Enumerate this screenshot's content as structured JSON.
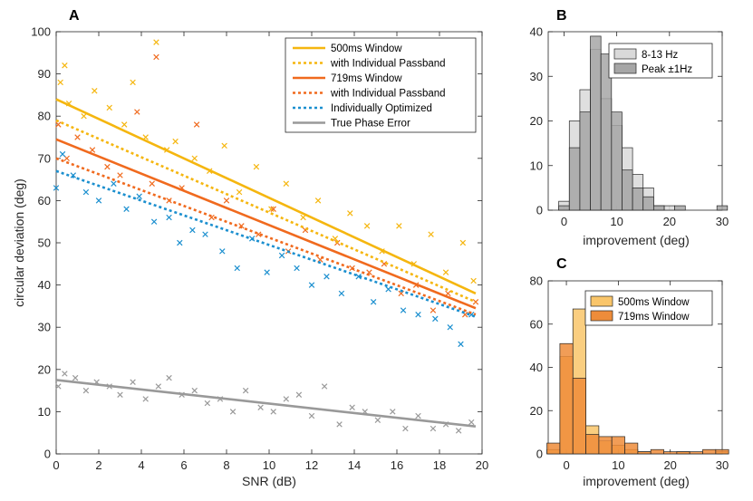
{
  "colors": {
    "w500": "#f5b60f",
    "w719": "#f06a1e",
    "optimized": "#1b8fcf",
    "truephase": "#999999",
    "hist_light": "#d9d9d9",
    "hist_dark": "#a6a6a6",
    "hist_500": "#f9c56a",
    "hist_719": "#ee8c3a"
  },
  "chart_data": [
    {
      "panel": "A",
      "type": "scatter",
      "title": "",
      "xlabel": "SNR (dB)",
      "ylabel": "circular deviation (deg)",
      "xlim": [
        0,
        20
      ],
      "ylim": [
        0,
        100
      ],
      "xticks": [
        0,
        2,
        4,
        6,
        8,
        10,
        12,
        14,
        16,
        18,
        20
      ],
      "yticks": [
        0,
        10,
        20,
        30,
        40,
        50,
        60,
        70,
        80,
        90,
        100
      ],
      "legend_position": "top-right",
      "series": [
        {
          "name": "500ms Window",
          "kind": "line",
          "color_key": "w500",
          "dash": "solid",
          "x": [
            0,
            19.7
          ],
          "y": [
            84,
            38
          ]
        },
        {
          "name": "with Individual Passband",
          "kind": "line",
          "color_key": "w500",
          "dash": "dotted",
          "x": [
            0,
            19.7
          ],
          "y": [
            79,
            36
          ]
        },
        {
          "name": "719ms Window",
          "kind": "line",
          "color_key": "w719",
          "dash": "solid",
          "x": [
            0,
            19.7
          ],
          "y": [
            74.5,
            34.5
          ]
        },
        {
          "name": "with Individual Passband",
          "kind": "line",
          "color_key": "w719",
          "dash": "dotted",
          "x": [
            0,
            19.7
          ],
          "y": [
            70,
            33
          ]
        },
        {
          "name": "Individually Optimized",
          "kind": "line",
          "color_key": "optimized",
          "dash": "dotted",
          "x": [
            0,
            19.7
          ],
          "y": [
            67,
            32.5
          ]
        },
        {
          "name": "True Phase Error",
          "kind": "line",
          "color_key": "truephase",
          "dash": "solid",
          "x": [
            0,
            19.7
          ],
          "y": [
            17.5,
            6.5
          ]
        },
        {
          "name": "500ms Window points",
          "kind": "scatter",
          "color_key": "w500",
          "x": [
            0.2,
            0.4,
            0.6,
            1.3,
            1.8,
            2.5,
            3.2,
            3.6,
            4.2,
            4.7,
            5.2,
            5.6,
            6.5,
            7.2,
            7.9,
            8.6,
            9.4,
            10.1,
            10.8,
            11.6,
            12.3,
            13.1,
            13.8,
            14.6,
            15.3,
            16.1,
            16.8,
            17.6,
            18.3,
            19.1,
            19.6
          ],
          "y": [
            88,
            92,
            83,
            80,
            86,
            82,
            78,
            88,
            75,
            97.5,
            72,
            74,
            70,
            67,
            73,
            62,
            68,
            58,
            64,
            56,
            60,
            51,
            57,
            54,
            48,
            54,
            45,
            52,
            43,
            50,
            41
          ]
        },
        {
          "name": "719ms Window points",
          "kind": "scatter",
          "color_key": "w719",
          "x": [
            0.1,
            0.5,
            1.0,
            1.7,
            2.4,
            3.0,
            3.8,
            4.5,
            4.7,
            5.3,
            5.9,
            6.6,
            7.3,
            8.0,
            8.7,
            9.5,
            10.2,
            10.9,
            11.7,
            12.4,
            13.2,
            13.9,
            14.7,
            15.4,
            16.2,
            16.9,
            17.7,
            18.4,
            19.2,
            19.7
          ],
          "y": [
            78,
            70,
            75,
            72,
            68,
            66,
            81,
            64,
            94,
            60,
            63,
            78,
            56,
            60,
            54,
            52,
            58,
            48,
            53,
            46,
            50,
            44,
            43,
            45,
            38,
            40,
            34,
            38,
            33,
            36
          ]
        },
        {
          "name": "Individually Optimized points",
          "kind": "scatter",
          "color_key": "optimized",
          "x": [
            0.0,
            0.3,
            0.8,
            1.4,
            2.0,
            2.7,
            3.3,
            3.9,
            4.6,
            5.3,
            5.8,
            6.4,
            7.0,
            7.8,
            8.5,
            9.2,
            9.9,
            10.6,
            11.3,
            12.0,
            12.7,
            13.4,
            14.2,
            14.9,
            15.6,
            16.3,
            17.0,
            17.8,
            18.5,
            19.0,
            19.5
          ],
          "y": [
            63,
            71,
            66,
            62,
            60,
            64,
            58,
            61,
            55,
            56,
            50,
            53,
            52,
            48,
            44,
            51,
            43,
            47,
            44,
            40,
            42,
            38,
            42,
            36,
            39,
            34,
            33,
            32,
            30,
            26,
            33
          ]
        },
        {
          "name": "True Phase Error points",
          "kind": "scatter",
          "color_key": "truephase",
          "x": [
            0.1,
            0.4,
            0.9,
            1.4,
            1.9,
            2.5,
            3.0,
            3.6,
            4.2,
            4.8,
            5.3,
            5.9,
            6.5,
            7.1,
            7.7,
            8.3,
            8.9,
            9.6,
            10.2,
            10.8,
            11.4,
            12.0,
            12.6,
            13.3,
            13.9,
            14.5,
            15.1,
            15.8,
            16.4,
            17.0,
            17.7,
            18.3,
            18.9,
            19.5
          ],
          "y": [
            16,
            19,
            18,
            15,
            17,
            16,
            14,
            17,
            13,
            16,
            18,
            14,
            15,
            12,
            13,
            10,
            15,
            11,
            10,
            13,
            14,
            9,
            16,
            7,
            11,
            10,
            8,
            10,
            6,
            9,
            6,
            7,
            5.5,
            7.5
          ]
        }
      ]
    },
    {
      "panel": "B",
      "type": "bar",
      "xlabel": "improvement (deg)",
      "ylabel": "",
      "xlim": [
        -3,
        30
      ],
      "ylim": [
        0,
        40
      ],
      "xticks": [
        0,
        10,
        20,
        30
      ],
      "yticks": [
        0,
        10,
        20,
        30,
        40
      ],
      "bin_width": 2,
      "legend_position": "top-right",
      "series": [
        {
          "name": "8-13 Hz",
          "color_key": "hist_light",
          "bin_starts": [
            -1,
            1,
            3,
            5,
            7,
            9,
            11,
            13,
            15,
            17,
            19,
            21,
            23,
            25,
            27,
            29
          ],
          "values": [
            2,
            20,
            27,
            36,
            25,
            19,
            14,
            8,
            5,
            1,
            1,
            0,
            0,
            0,
            0,
            0
          ]
        },
        {
          "name": "Peak ±1Hz",
          "color_key": "hist_dark",
          "bin_starts": [
            -1,
            1,
            3,
            5,
            7,
            9,
            11,
            13,
            15,
            17,
            19,
            21,
            23,
            25,
            27,
            29
          ],
          "values": [
            1,
            14,
            22,
            39,
            35,
            22,
            9,
            5,
            3,
            1,
            0,
            1,
            0,
            0,
            0,
            1
          ]
        }
      ]
    },
    {
      "panel": "C",
      "type": "bar",
      "xlabel": "improvement (deg)",
      "ylabel": "",
      "xlim": [
        -3.5,
        30
      ],
      "ylim": [
        0,
        80
      ],
      "xticks": [
        0,
        10,
        20,
        30
      ],
      "yticks": [
        0,
        20,
        40,
        60,
        80
      ],
      "bin_width": 2.5,
      "legend_position": "top-right",
      "series": [
        {
          "name": "500ms Window",
          "color_key": "hist_500",
          "bin_starts": [
            -3.75,
            -1.25,
            1.25,
            3.75,
            6.25,
            8.75,
            11.25,
            13.75,
            16.25,
            18.75,
            21.25,
            23.75,
            26.25,
            28.75
          ],
          "values": [
            2,
            45,
            67,
            13,
            6,
            4,
            2,
            1,
            0,
            0,
            1,
            0,
            0,
            1
          ]
        },
        {
          "name": "719ms Window",
          "color_key": "hist_719",
          "bin_starts": [
            -3.75,
            -1.25,
            1.25,
            3.75,
            6.25,
            8.75,
            11.25,
            13.75,
            16.25,
            18.75,
            21.25,
            23.75,
            26.25,
            28.75
          ],
          "values": [
            5,
            51,
            35,
            9,
            8,
            8,
            5,
            1,
            2,
            1,
            1,
            1,
            2,
            2
          ]
        }
      ]
    }
  ]
}
